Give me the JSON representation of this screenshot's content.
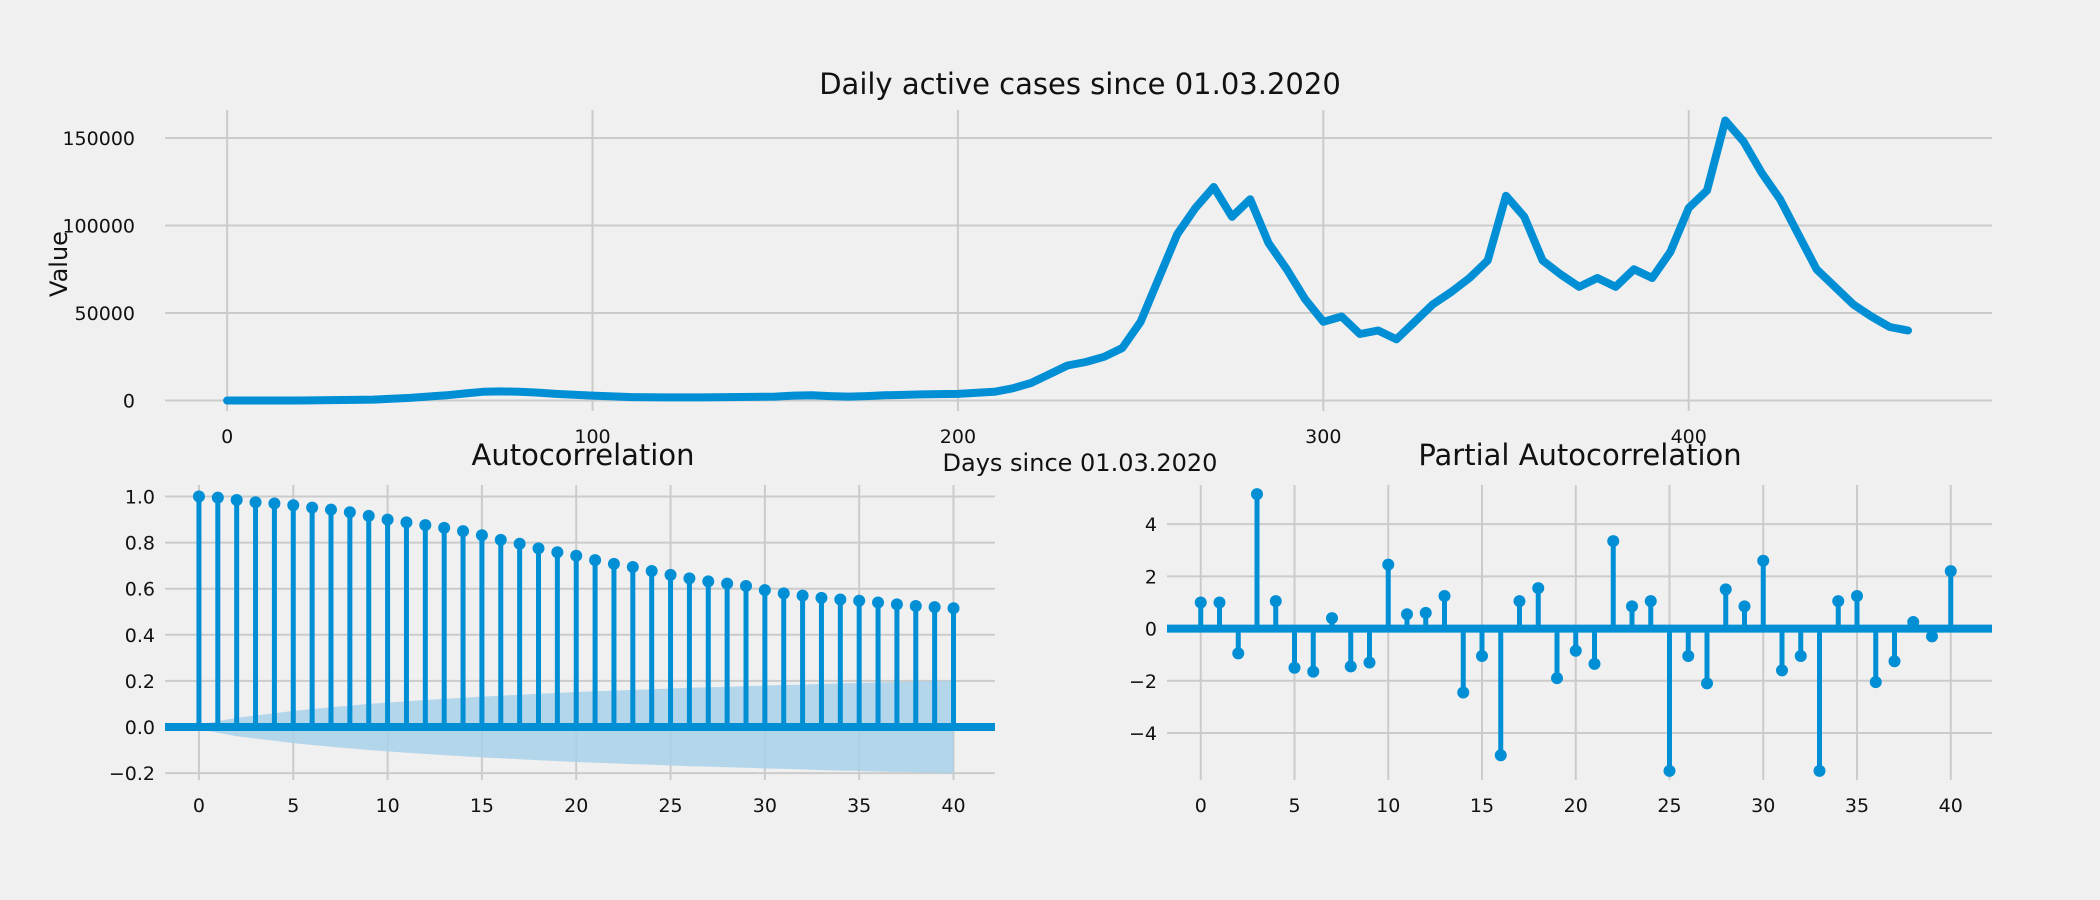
{
  "colors": {
    "background": "#f0f0f0",
    "series": "#008fd5",
    "band": "#a9d1ea",
    "grid": "#cbcbcb"
  },
  "chart_data": [
    {
      "type": "line",
      "title": "Daily active cases since 01.03.2020",
      "xlabel": "Days since 01.03.2020",
      "ylabel": "Value",
      "xlim": [
        -17,
        483
      ],
      "ylim": [
        -6000,
        166000
      ],
      "xticks": [
        0,
        100,
        200,
        300,
        400
      ],
      "xtick_labels": [
        "0",
        "100",
        "200",
        "300",
        "400"
      ],
      "yticks": [
        0,
        50000,
        100000,
        150000
      ],
      "ytick_labels": [
        "0",
        "50000",
        "100000",
        "150000"
      ],
      "grid": true,
      "series": [
        {
          "x": [
            0,
            20,
            40,
            50,
            60,
            65,
            70,
            75,
            80,
            85,
            90,
            100,
            110,
            120,
            130,
            140,
            150,
            155,
            160,
            165,
            170,
            175,
            180,
            185,
            190,
            200,
            210,
            215,
            220,
            225,
            230,
            235,
            240,
            245,
            250,
            255,
            260,
            265,
            270,
            275,
            280,
            285,
            290,
            295,
            300,
            305,
            310,
            315,
            320,
            325,
            330,
            335,
            340,
            345,
            350,
            355,
            360,
            365,
            370,
            375,
            380,
            385,
            390,
            395,
            400,
            405,
            410,
            415,
            420,
            425,
            430,
            435,
            440,
            445,
            450,
            455,
            460
          ],
          "y": [
            0,
            0,
            500,
            1500,
            3000,
            4000,
            5000,
            5200,
            5000,
            4500,
            3800,
            2800,
            2000,
            1800,
            1800,
            2000,
            2200,
            2800,
            3000,
            2500,
            2200,
            2500,
            3000,
            3200,
            3500,
            3800,
            5000,
            7000,
            10000,
            15000,
            20000,
            22000,
            25000,
            30000,
            45000,
            70000,
            95000,
            110000,
            122000,
            105000,
            115000,
            90000,
            75000,
            58000,
            45000,
            48000,
            38000,
            40000,
            35000,
            45000,
            55000,
            62000,
            70000,
            80000,
            117000,
            105000,
            80000,
            72000,
            65000,
            70000,
            65000,
            75000,
            70000,
            85000,
            110000,
            120000,
            160000,
            148000,
            130000,
            115000,
            95000,
            75000,
            65000,
            55000,
            48000,
            42000,
            40000
          ]
        }
      ]
    },
    {
      "type": "bar",
      "title": "Autocorrelation",
      "xlim": [
        -1.8,
        42.2
      ],
      "ylim": [
        -0.23,
        1.05
      ],
      "xticks": [
        0,
        5,
        10,
        15,
        20,
        25,
        30,
        35,
        40
      ],
      "xtick_labels": [
        "0",
        "5",
        "10",
        "15",
        "20",
        "25",
        "30",
        "35",
        "40"
      ],
      "yticks": [
        -0.2,
        0.0,
        0.2,
        0.4,
        0.6,
        0.8,
        1.0
      ],
      "ytick_labels": [
        "−0.2",
        "0.0",
        "0.2",
        "0.4",
        "0.6",
        "0.8",
        "1.0"
      ],
      "grid": true,
      "lags": [
        0,
        1,
        2,
        3,
        4,
        5,
        6,
        7,
        8,
        9,
        10,
        11,
        12,
        13,
        14,
        15,
        16,
        17,
        18,
        19,
        20,
        21,
        22,
        23,
        24,
        25,
        26,
        27,
        28,
        29,
        30,
        31,
        32,
        33,
        34,
        35,
        36,
        37,
        38,
        39,
        40
      ],
      "values": [
        1.0,
        0.995,
        0.985,
        0.975,
        0.97,
        0.962,
        0.952,
        0.943,
        0.932,
        0.916,
        0.9,
        0.888,
        0.876,
        0.864,
        0.85,
        0.832,
        0.812,
        0.795,
        0.775,
        0.758,
        0.743,
        0.724,
        0.708,
        0.694,
        0.677,
        0.66,
        0.645,
        0.632,
        0.622,
        0.612,
        0.594,
        0.58,
        0.57,
        0.56,
        0.553,
        0.548,
        0.54,
        0.532,
        0.525,
        0.52,
        0.515
      ],
      "confidence_band": [
        0.01,
        0.025,
        0.04,
        0.05,
        0.06,
        0.07,
        0.078,
        0.086,
        0.093,
        0.1,
        0.106,
        0.112,
        0.117,
        0.122,
        0.127,
        0.132,
        0.136,
        0.14,
        0.144,
        0.148,
        0.152,
        0.155,
        0.158,
        0.161,
        0.164,
        0.167,
        0.17,
        0.172,
        0.175,
        0.177,
        0.18,
        0.182,
        0.184,
        0.187,
        0.189,
        0.191,
        0.193,
        0.195,
        0.197,
        0.199,
        0.201
      ]
    },
    {
      "type": "bar",
      "title": "Partial Autocorrelation",
      "xlim": [
        -1.8,
        42.2
      ],
      "ylim": [
        -5.8,
        5.5
      ],
      "xticks": [
        0,
        5,
        10,
        15,
        20,
        25,
        30,
        35,
        40
      ],
      "xtick_labels": [
        "0",
        "5",
        "10",
        "15",
        "20",
        "25",
        "30",
        "35",
        "40"
      ],
      "yticks": [
        -4,
        -2,
        0,
        2,
        4
      ],
      "ytick_labels": [
        "−4",
        "−2",
        "0",
        "2",
        "4"
      ],
      "grid": true,
      "lags": [
        0,
        1,
        2,
        3,
        4,
        5,
        6,
        7,
        8,
        9,
        10,
        11,
        12,
        13,
        14,
        15,
        16,
        17,
        18,
        19,
        20,
        21,
        22,
        23,
        24,
        25,
        26,
        27,
        28,
        29,
        30,
        31,
        32,
        33,
        34,
        35,
        36,
        37,
        38,
        39,
        40
      ],
      "values": [
        1.0,
        1.0,
        -0.95,
        5.15,
        1.05,
        -1.5,
        -1.65,
        0.4,
        -1.45,
        -1.3,
        2.45,
        0.55,
        0.6,
        1.25,
        -2.45,
        -1.05,
        -4.85,
        1.05,
        1.55,
        -1.9,
        -0.85,
        -1.35,
        3.35,
        0.85,
        1.05,
        -5.45,
        -1.05,
        -2.1,
        1.5,
        0.85,
        2.6,
        -1.6,
        -1.05,
        -5.45,
        1.05,
        1.25,
        -2.05,
        -1.25,
        0.25,
        -0.3,
        2.2
      ]
    }
  ]
}
